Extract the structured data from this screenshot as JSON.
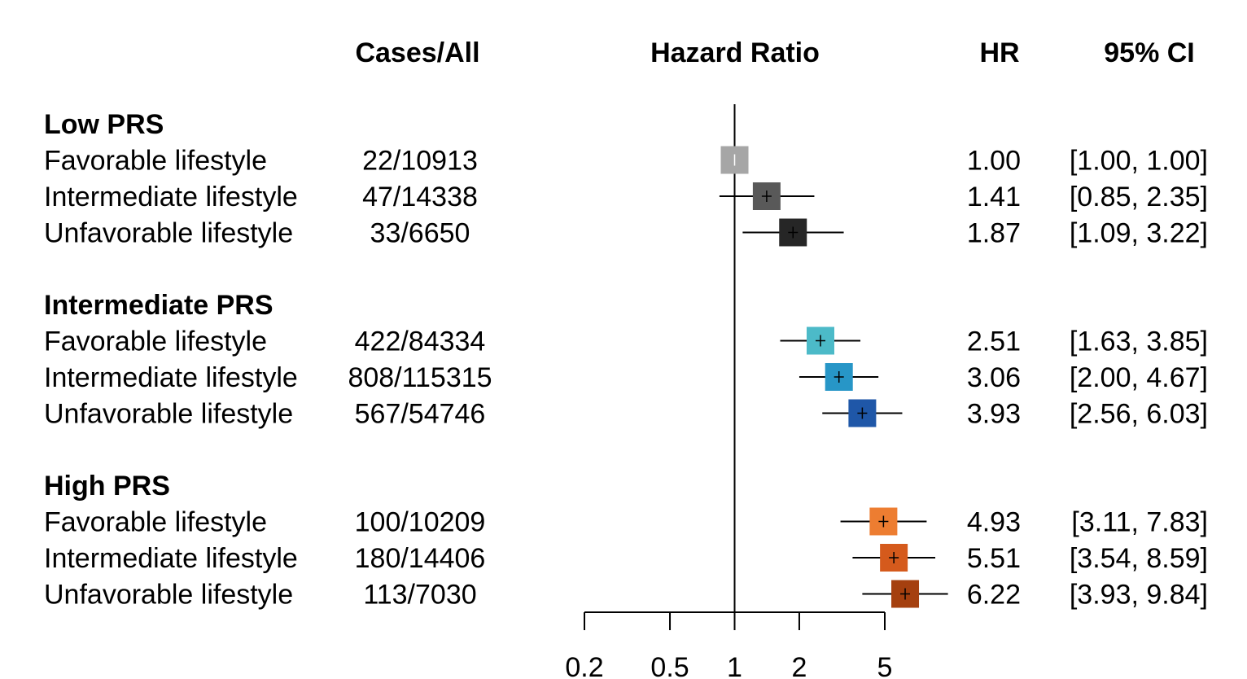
{
  "chart_data": {
    "type": "forest",
    "headers": {
      "cases": "Cases/All",
      "hazard": "Hazard Ratio",
      "hr": "HR",
      "ci": "95% CI"
    },
    "reference_line": 1,
    "x_scale": "log",
    "x_ticks": [
      {
        "value": 0.2,
        "label": "0.2"
      },
      {
        "value": 0.5,
        "label": "0.5"
      },
      {
        "value": 1,
        "label": "1"
      },
      {
        "value": 2,
        "label": "2"
      },
      {
        "value": 5,
        "label": "5"
      }
    ],
    "groups": [
      {
        "title": "Low PRS",
        "rows": [
          {
            "label": "Favorable lifestyle",
            "cases": "22/10913",
            "hr": 1.0,
            "lo": 1.0,
            "hi": 1.0,
            "hr_text": "1.00",
            "ci_text": "[1.00,  1.00]",
            "color": "#a6a6a6"
          },
          {
            "label": "Intermediate lifestyle",
            "cases": "47/14338",
            "hr": 1.41,
            "lo": 0.85,
            "hi": 2.35,
            "hr_text": "1.41",
            "ci_text": "[0.85,  2.35]",
            "color": "#595959"
          },
          {
            "label": "Unfavorable lifestyle",
            "cases": "33/6650",
            "hr": 1.87,
            "lo": 1.09,
            "hi": 3.22,
            "hr_text": "1.87",
            "ci_text": "[1.09,  3.22]",
            "color": "#262626"
          }
        ]
      },
      {
        "title": "Intermediate PRS",
        "rows": [
          {
            "label": "Favorable lifestyle",
            "cases": "422/84334",
            "hr": 2.51,
            "lo": 1.63,
            "hi": 3.85,
            "hr_text": "2.51",
            "ci_text": "[1.63,  3.85]",
            "color": "#4cbac8"
          },
          {
            "label": "Intermediate lifestyle",
            "cases": "808/115315",
            "hr": 3.06,
            "lo": 2.0,
            "hi": 4.67,
            "hr_text": "3.06",
            "ci_text": "[2.00,  4.67]",
            "color": "#2796c7"
          },
          {
            "label": "Unfavorable lifestyle",
            "cases": "567/54746",
            "hr": 3.93,
            "lo": 2.56,
            "hi": 6.03,
            "hr_text": "3.93",
            "ci_text": "[2.56,  6.03]",
            "color": "#1f57a8"
          }
        ]
      },
      {
        "title": "High PRS",
        "rows": [
          {
            "label": "Favorable lifestyle",
            "cases": "100/10209",
            "hr": 4.93,
            "lo": 3.11,
            "hi": 7.83,
            "hr_text": "4.93",
            "ci_text": "[3.11,  7.83]",
            "color": "#ed7d31"
          },
          {
            "label": "Intermediate lifestyle",
            "cases": "180/14406",
            "hr": 5.51,
            "lo": 3.54,
            "hi": 8.59,
            "hr_text": "5.51",
            "ci_text": "[3.54,  8.59]",
            "color": "#d55a1c"
          },
          {
            "label": "Unfavorable lifestyle",
            "cases": "113/7030",
            "hr": 6.22,
            "lo": 3.93,
            "hi": 9.84,
            "hr_text": "6.22",
            "ci_text": "[3.93,  9.84]",
            "color": "#a5400f"
          }
        ]
      }
    ]
  }
}
